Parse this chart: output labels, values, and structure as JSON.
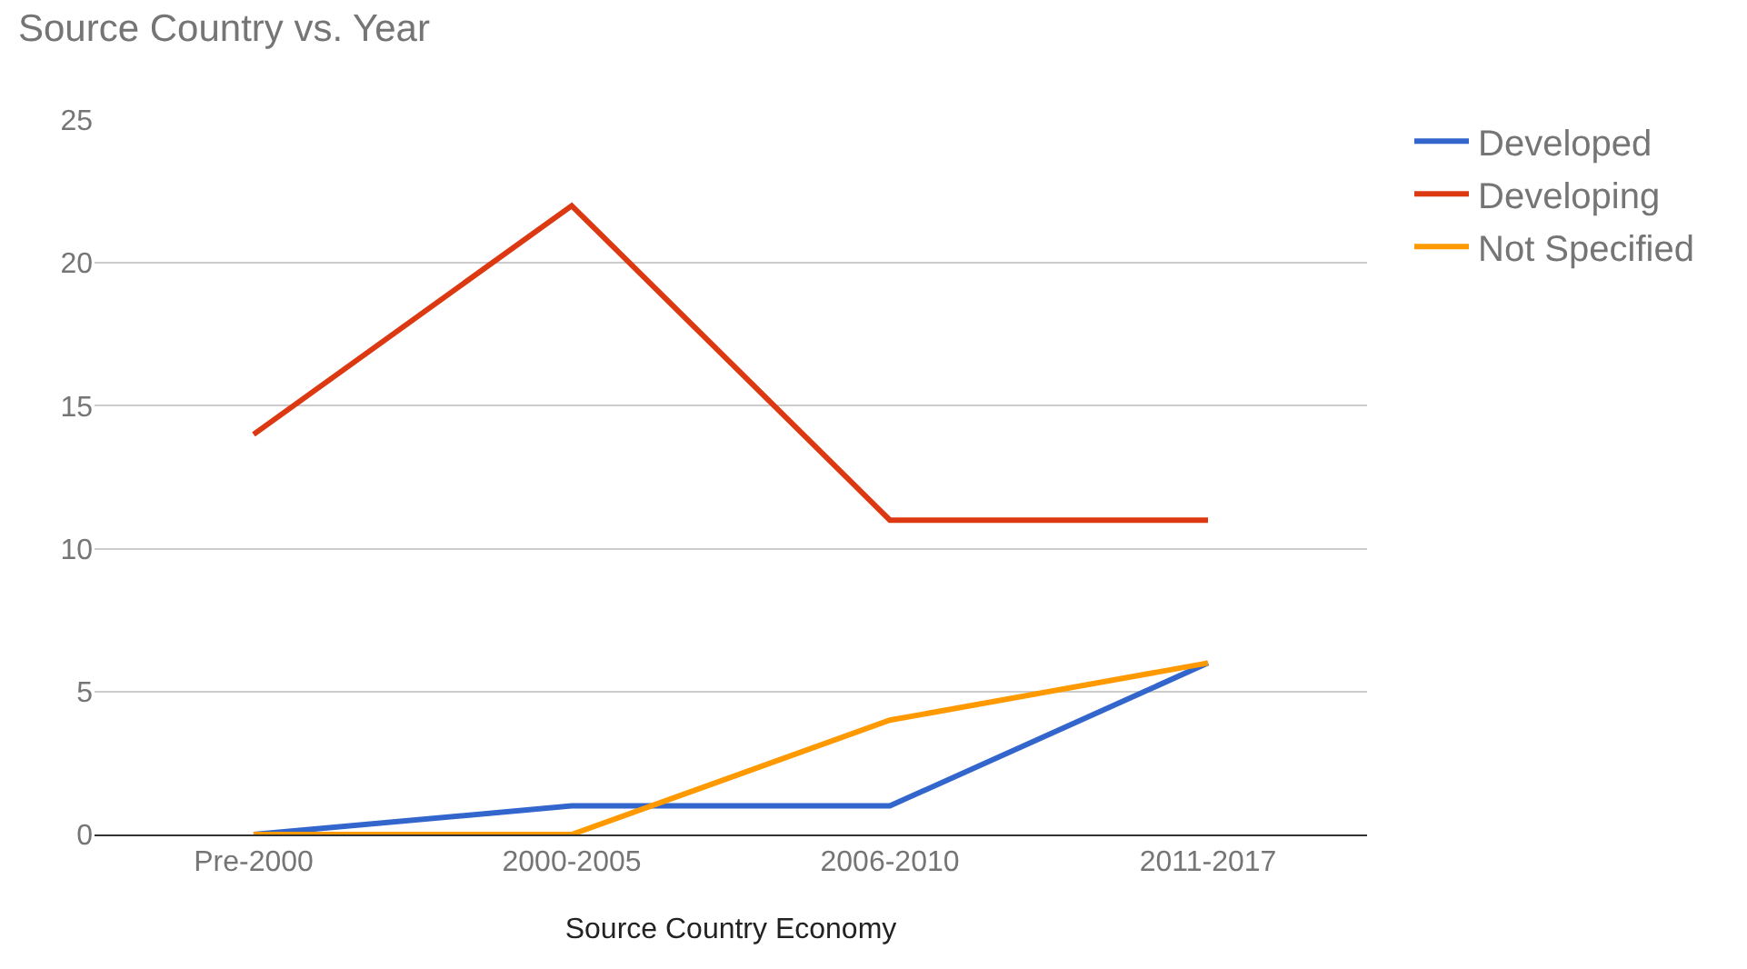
{
  "chart_data": {
    "type": "line",
    "title": "Source Country vs. Year",
    "xlabel": "Source Country Economy",
    "categories": [
      "Pre-2000",
      "2000-2005",
      "2006-2010",
      "2011-2017"
    ],
    "series": [
      {
        "name": "Developed",
        "color": "#3366cc",
        "values": [
          0,
          1,
          1,
          6
        ]
      },
      {
        "name": "Developing",
        "color": "#dc3912",
        "values": [
          14,
          22,
          11,
          11
        ]
      },
      {
        "name": "Not Specified",
        "color": "#ff9900",
        "values": [
          0,
          0,
          4,
          6
        ]
      }
    ],
    "ylim": [
      0,
      25
    ],
    "yticks": [
      0,
      5,
      10,
      15,
      20,
      25
    ],
    "grid": "y",
    "legend": "right",
    "marker": "none",
    "line_style": "solid"
  }
}
